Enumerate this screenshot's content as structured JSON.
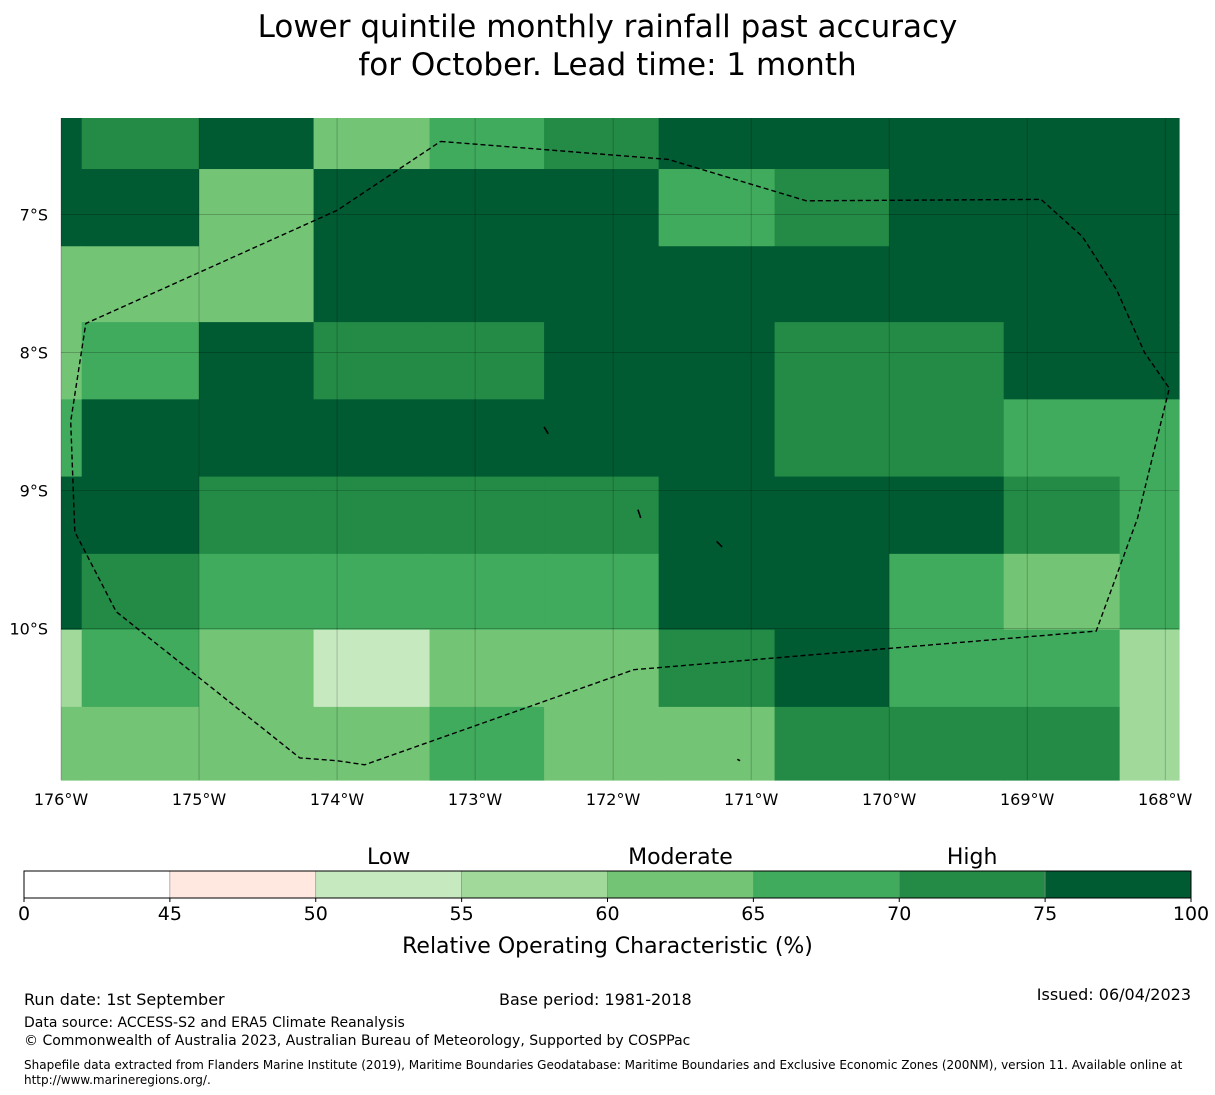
{
  "title": {
    "line1": "Lower quintile monthly rainfall past accuracy",
    "line2": "for October. Lead time: 1 month"
  },
  "map": {
    "extent": {
      "lon_min": -176.0,
      "lon_max": -167.9,
      "lat_top": -6.3,
      "lat_bottom": -11.1
    },
    "lat_ticks": [
      {
        "value": -7,
        "label": "7°S"
      },
      {
        "value": -8,
        "label": "8°S"
      },
      {
        "value": -9,
        "label": "9°S"
      },
      {
        "value": -10,
        "label": "10°S"
      }
    ],
    "lon_ticks": [
      {
        "value": -176,
        "label": "176°W"
      },
      {
        "value": -175,
        "label": "175°W"
      },
      {
        "value": -174,
        "label": "174°W"
      },
      {
        "value": -173,
        "label": "173°W"
      },
      {
        "value": -172,
        "label": "172°W"
      },
      {
        "value": -171,
        "label": "171°W"
      },
      {
        "value": -170,
        "label": "170°W"
      },
      {
        "value": -169,
        "label": "169°W"
      },
      {
        "value": -168,
        "label": "168°W"
      }
    ],
    "cell_lons": [
      -176.0,
      -175.85,
      -175.0,
      -174.17,
      -173.33,
      -172.5,
      -171.67,
      -170.83,
      -170.0,
      -169.17,
      -168.33,
      -167.9
    ],
    "cell_lats": [
      -6.3,
      -6.67,
      -7.23,
      -7.78,
      -8.34,
      -8.9,
      -9.46,
      -10.01,
      -10.57,
      -11.1
    ],
    "accuracy_classes": [
      [
        7,
        6,
        7,
        4,
        5,
        6,
        7,
        7,
        7,
        7,
        7
      ],
      [
        7,
        7,
        4,
        7,
        7,
        7,
        5,
        6,
        7,
        7,
        7
      ],
      [
        4,
        4,
        4,
        7,
        7,
        7,
        7,
        7,
        7,
        7,
        7
      ],
      [
        4,
        5,
        7,
        6,
        6,
        7,
        7,
        6,
        6,
        7,
        7
      ],
      [
        5,
        7,
        7,
        7,
        7,
        7,
        7,
        6,
        6,
        5,
        5
      ],
      [
        7,
        7,
        6,
        6,
        6,
        6,
        7,
        7,
        7,
        6,
        5
      ],
      [
        7,
        6,
        5,
        5,
        5,
        5,
        7,
        7,
        5,
        4,
        5
      ],
      [
        3,
        5,
        4,
        2,
        4,
        4,
        6,
        7,
        5,
        5,
        3
      ],
      [
        4,
        4,
        4,
        4,
        5,
        4,
        4,
        6,
        6,
        6,
        3
      ]
    ],
    "eez_boundary": [
      [
        -173.25,
        -6.47
      ],
      [
        -171.6,
        -6.6
      ],
      [
        -170.6,
        -6.9
      ],
      [
        -168.9,
        -6.89
      ],
      [
        -168.6,
        -7.16
      ],
      [
        -168.35,
        -7.55
      ],
      [
        -168.15,
        -8.0
      ],
      [
        -167.97,
        -8.26
      ],
      [
        -168.2,
        -9.2
      ],
      [
        -168.5,
        -10.02
      ],
      [
        -171.85,
        -10.3
      ],
      [
        -173.8,
        -10.99
      ],
      [
        -174.0,
        -10.96
      ],
      [
        -174.27,
        -10.94
      ],
      [
        -175.6,
        -9.88
      ],
      [
        -175.9,
        -9.3
      ],
      [
        -175.93,
        -8.5
      ],
      [
        -175.82,
        -7.79
      ],
      [
        -174.0,
        -6.97
      ],
      [
        -173.25,
        -6.47
      ]
    ],
    "islands": [
      [
        [
          -172.5,
          -8.54
        ],
        [
          -172.47,
          -8.59
        ]
      ],
      [
        [
          -171.82,
          -9.14
        ],
        [
          -171.8,
          -9.2
        ]
      ],
      [
        [
          -171.25,
          -9.37
        ],
        [
          -171.21,
          -9.41
        ]
      ],
      [
        [
          -171.1,
          -10.95
        ],
        [
          -171.08,
          -10.96
        ]
      ]
    ]
  },
  "colorbar": {
    "ticks": [
      "0",
      "45",
      "50",
      "55",
      "60",
      "65",
      "70",
      "75",
      "100"
    ],
    "colors": [
      "#ffffff",
      "#fee8e0",
      "#c7e9c0",
      "#a1d99b",
      "#74c476",
      "#41ab5d",
      "#238b45",
      "#005a32"
    ],
    "categories": [
      {
        "label": "Low",
        "segment": 2.5
      },
      {
        "label": "Moderate",
        "segment": 4.5
      },
      {
        "label": "High",
        "segment": 6.5
      }
    ],
    "title": "Relative Operating Characteristic (%)"
  },
  "footer": {
    "run_date": "Run date: 1st September",
    "base_period": "Base period: 1981-2018",
    "issued": "Issued: 06/04/2023",
    "data_source": "Data source: ACCESS-S2 and ERA5 Climate Reanalysis",
    "copyright": "© Commonwealth of Australia 2023, Australian Bureau of Meteorology, Supported by COSPPac",
    "shapefile": "Shapefile data extracted from Flanders Marine Institute (2019), Maritime Boundaries Geodatabase: Maritime Boundaries and Exclusive Economic Zones (200NM), version 11. Available online at http://www.marineregions.org/."
  }
}
